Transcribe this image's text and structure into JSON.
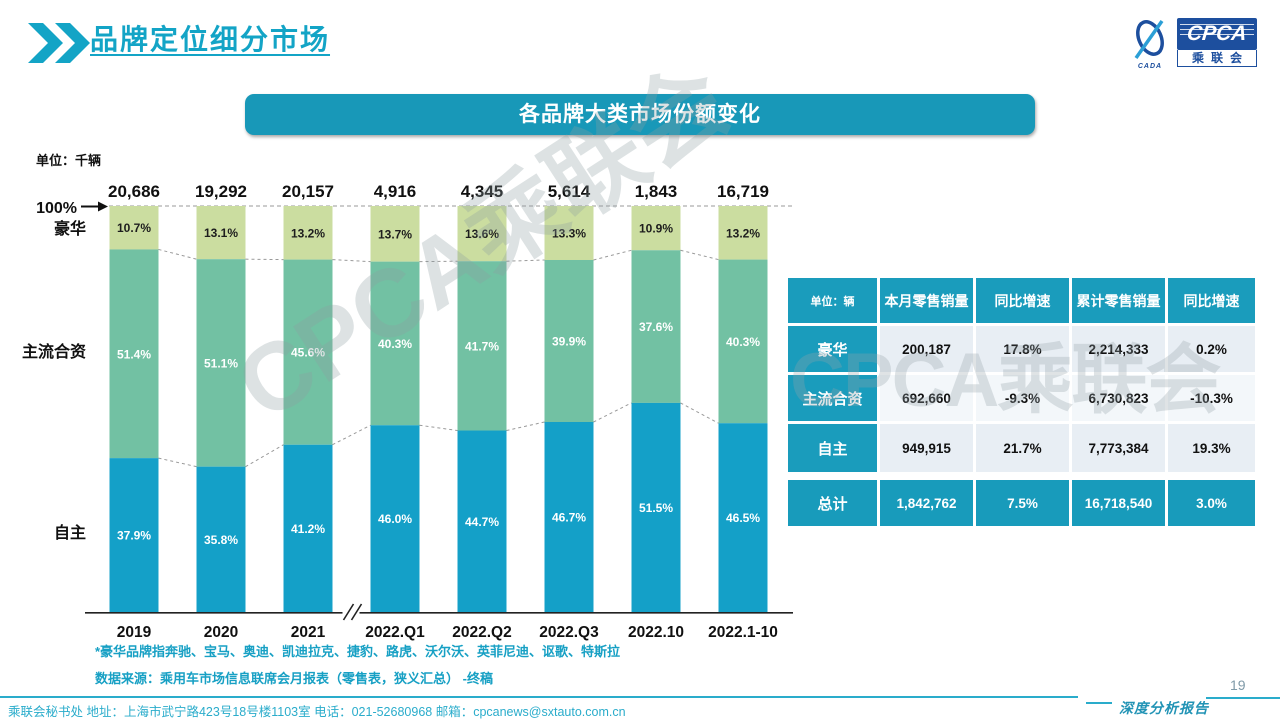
{
  "slide": {
    "title": "品牌定位细分市场"
  },
  "logo": {
    "acronym": "CPCA",
    "org_name": "乘联会",
    "swoosh_caption": "CADA"
  },
  "banner": {
    "title": "各品牌大类市场份额变化"
  },
  "chart_data": {
    "type": "bar",
    "stacked": true,
    "unit_label": "单位：千辆",
    "axis_top_label": "100%",
    "categories": [
      "2019",
      "2020",
      "2021",
      "2022.Q1",
      "2022.Q2",
      "2022.Q3",
      "2022.10",
      "2022.1-10"
    ],
    "axis_break_after": "2021",
    "totals": [
      20686,
      19292,
      20157,
      4916,
      4345,
      5614,
      1843,
      16719
    ],
    "series": [
      {
        "name": "豪华",
        "values": [
          10.7,
          13.1,
          13.2,
          13.7,
          13.6,
          13.3,
          10.9,
          13.2
        ]
      },
      {
        "name": "主流合资",
        "values": [
          51.4,
          51.1,
          45.6,
          40.3,
          41.7,
          39.9,
          37.6,
          40.3
        ]
      },
      {
        "name": "自主",
        "values": [
          37.9,
          35.8,
          41.2,
          46.0,
          44.7,
          46.7,
          51.5,
          46.5
        ]
      }
    ],
    "ylim": [
      0,
      100
    ],
    "legend_position": "left-axis-labels"
  },
  "table": {
    "header": [
      "单位：辆",
      "本月零售销量",
      "同比增速",
      "累计零售销量",
      "同比增速"
    ],
    "rows": [
      {
        "label": "豪华",
        "cells": [
          "200,187",
          "17.8%",
          "2,214,333",
          "0.2%"
        ],
        "highlight": false
      },
      {
        "label": "主流合资",
        "cells": [
          "692,660",
          "-9.3%",
          "6,730,823",
          "-10.3%"
        ],
        "highlight": false
      },
      {
        "label": "自主",
        "cells": [
          "949,915",
          "21.7%",
          "7,773,384",
          "19.3%"
        ],
        "highlight": false
      },
      {
        "label": "总计",
        "cells": [
          "1,842,762",
          "7.5%",
          "16,718,540",
          "3.0%"
        ],
        "highlight": true
      }
    ]
  },
  "footnotes": [
    "*豪华品牌指奔驰、宝马、奥迪、凯迪拉克、捷豹、路虎、沃尔沃、英菲尼迪、讴歌、特斯拉",
    "数据来源：乘用车市场信息联席会月报表（零售表，狭义汇总） -终稿"
  ],
  "footer": {
    "left": "乘联会秘书处  地址：上海市武宁路423号18号楼1103室 电话：021-52680968  邮箱：cpcanews@sxtauto.com.cn",
    "report": "深度分析报告",
    "page": "19"
  },
  "watermark_text": "CPCA乘联会",
  "colors": {
    "accent_cyan": "#13a4c6",
    "banner_cyan": "#1898b8",
    "luxury_green": "#cbdda0",
    "mainstream_green": "#72c1a3",
    "domestic_blue": "#14a0c8",
    "table_header_cyan": "#1a9cbc",
    "dashed_line_gray": "#9a9a9a",
    "axis_black": "#222222"
  }
}
